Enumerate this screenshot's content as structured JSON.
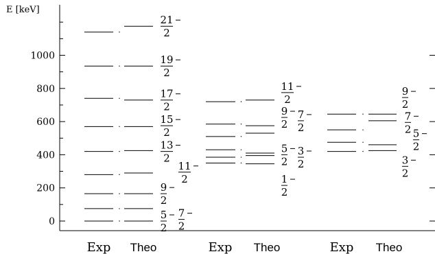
{
  "axis": {
    "label": "E [keV]",
    "ticks": [
      0,
      200,
      400,
      600,
      800,
      1000
    ]
  },
  "groups": [
    {
      "exp_label": "Exp",
      "theo_label": "Theo",
      "exp_levels": [
        0,
        75,
        165,
        280,
        420,
        570,
        740,
        935,
        1140
      ],
      "theo_levels": [
        0,
        75,
        165,
        290,
        425,
        570,
        730,
        935,
        1175
      ],
      "spin_labels": [
        {
          "num": "5",
          "den": "2",
          "energy": 0
        },
        {
          "num": "7",
          "den": "2",
          "energy": 10
        },
        {
          "num": "9",
          "den": "2",
          "energy": 165
        },
        {
          "num": "11",
          "den": "2",
          "energy": 295
        },
        {
          "num": "13",
          "den": "2",
          "energy": 420
        },
        {
          "num": "15",
          "den": "2",
          "energy": 575
        },
        {
          "num": "17",
          "den": "2",
          "energy": 730
        },
        {
          "num": "19",
          "den": "2",
          "energy": 935
        },
        {
          "num": "21",
          "den": "2",
          "energy": 1175
        }
      ]
    },
    {
      "exp_label": "Exp",
      "theo_label": "Theo",
      "exp_levels": [
        350,
        385,
        430,
        510,
        585,
        720
      ],
      "theo_levels": [
        345,
        395,
        410,
        530,
        575,
        730
      ],
      "spin_labels": [
        {
          "num": "1",
          "den": "2",
          "energy": 215
        },
        {
          "num": "5",
          "den": "2",
          "energy": 400
        },
        {
          "num": "3",
          "den": "2",
          "energy": 385
        },
        {
          "num": "9",
          "den": "2",
          "energy": 625
        },
        {
          "num": "7",
          "den": "2",
          "energy": 605
        },
        {
          "num": "11",
          "den": "2",
          "energy": 775
        }
      ]
    },
    {
      "exp_label": "Exp",
      "theo_label": "Theo",
      "exp_levels": [
        420,
        475,
        550,
        645
      ],
      "theo_levels": [
        425,
        460,
        605,
        645
      ],
      "spin_labels": [
        {
          "num": "3",
          "den": "2",
          "energy": 330
        },
        {
          "num": "5",
          "den": "2",
          "energy": 490
        },
        {
          "num": "7",
          "den": "2",
          "energy": 595
        },
        {
          "num": "9",
          "den": "2",
          "energy": 745
        }
      ]
    }
  ]
}
